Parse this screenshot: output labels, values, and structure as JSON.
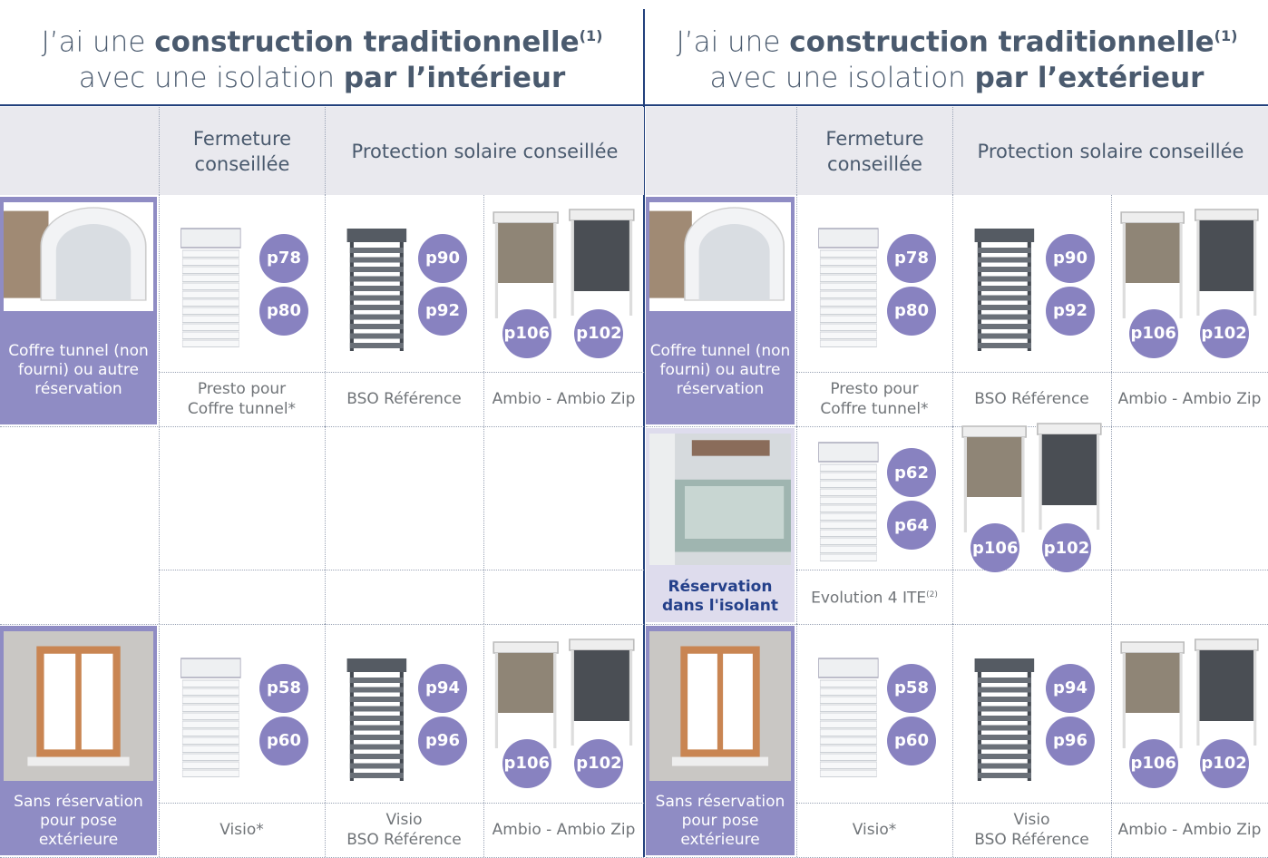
{
  "panels": [
    {
      "title": {
        "line1": "J’ai une",
        "line1_strong": "construction traditionnelle",
        "note": "(1)",
        "line2": "avec une isolation",
        "line2_strong": "par l’intérieur"
      },
      "headers": {
        "closure": "Fermeture conseillée",
        "protection": "Protection solaire conseillée"
      },
      "rows": [
        {
          "label": "Coffre tunnel (non fourni) ou autre réservation",
          "closure": {
            "pages": [
              "p78",
              "p80"
            ],
            "caption": [
              "Presto pour",
              "Coffre tunnel*"
            ]
          },
          "protection": [
            {
              "pages": [
                "p90",
                "p92"
              ],
              "caption": [
                "BSO Référence"
              ]
            },
            {
              "pages": [
                "p106",
                "p102"
              ],
              "caption": [
                "Ambio - Ambio Zip"
              ]
            }
          ]
        },
        {},
        {
          "label": "Sans réservation pour pose extérieure",
          "closure": {
            "pages": [
              "p58",
              "p60"
            ],
            "caption": [
              "Visio*"
            ]
          },
          "protection": [
            {
              "pages": [
                "p94",
                "p96"
              ],
              "caption": [
                "Visio",
                "BSO Référence"
              ]
            },
            {
              "pages": [
                "p106",
                "p102"
              ],
              "caption": [
                "Ambio - Ambio Zip"
              ]
            }
          ]
        }
      ]
    },
    {
      "title": {
        "line1": "J’ai une",
        "line1_strong": "construction traditionnelle",
        "note": "(1)",
        "line2": "avec une isolation",
        "line2_strong": "par l’extérieur"
      },
      "headers": {
        "closure": "Fermeture conseillée",
        "protection": "Protection solaire conseillée"
      },
      "rows": [
        {
          "label": "Coffre tunnel (non fourni) ou autre réservation",
          "closure": {
            "pages": [
              "p78",
              "p80"
            ],
            "caption": [
              "Presto pour",
              "Coffre tunnel*"
            ]
          },
          "protection": [
            {
              "pages": [
                "p90",
                "p92"
              ],
              "caption": [
                "BSO Référence"
              ]
            },
            {
              "pages": [
                "p106",
                "p102"
              ],
              "caption": [
                "Ambio - Ambio Zip"
              ]
            }
          ]
        },
        {
          "label": "Réservation dans l'isolant",
          "closure": {
            "pages": [
              "p62",
              "p64"
            ],
            "caption": [
              "Evolution 4 ITE"
            ],
            "caption_note": "(2)"
          },
          "protection": [
            {
              "pages": [
                "p106",
                "p102"
              ]
            }
          ]
        },
        {
          "label": "Sans réservation pour pose extérieure",
          "closure": {
            "pages": [
              "p58",
              "p60"
            ],
            "caption": [
              "Visio*"
            ]
          },
          "protection": [
            {
              "pages": [
                "p94",
                "p96"
              ],
              "caption": [
                "Visio",
                "BSO Référence"
              ]
            },
            {
              "pages": [
                "p106",
                "p102"
              ],
              "caption": [
                "Ambio - Ambio Zip"
              ]
            }
          ]
        }
      ]
    }
  ]
}
